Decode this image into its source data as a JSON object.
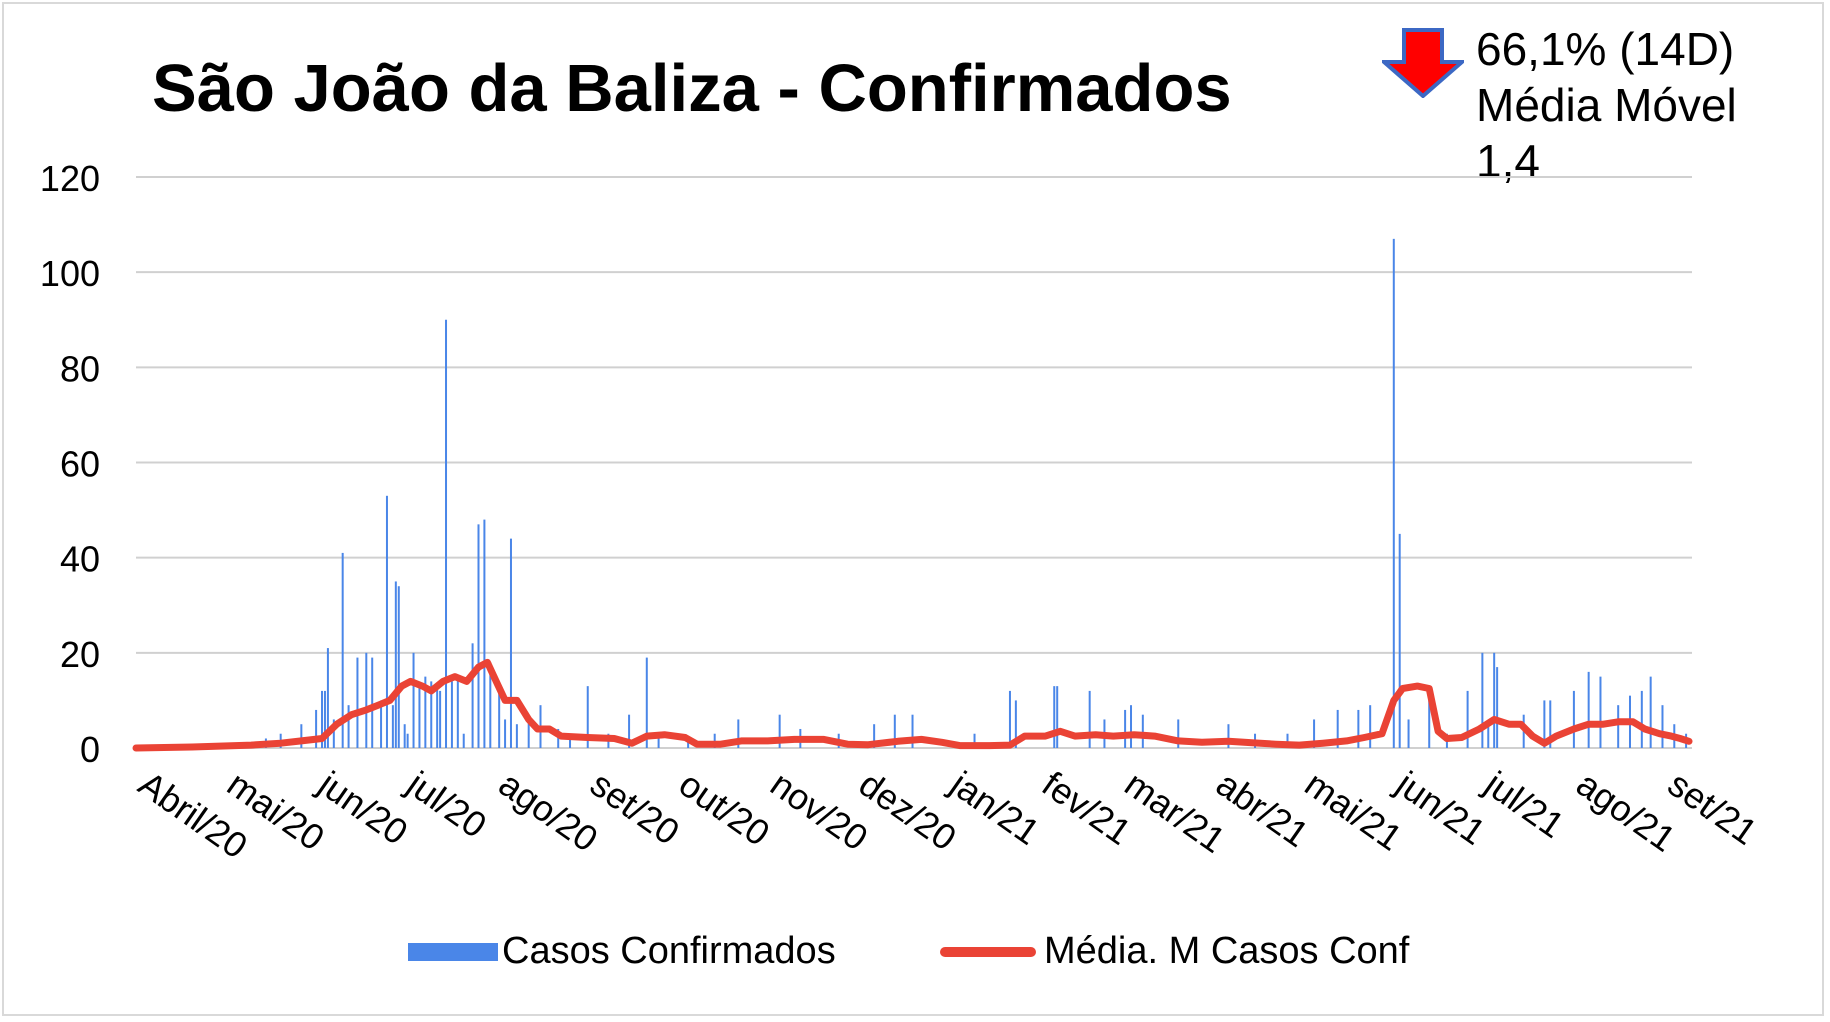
{
  "chart_data": {
    "type": "bar",
    "title": "São João da Baliza - Confirmados",
    "xlabel": "",
    "ylabel": "",
    "ylim": [
      0,
      120
    ],
    "yticks": [
      "0",
      "20",
      "40",
      "60",
      "80",
      "100",
      "120"
    ],
    "x_tick_labels": [
      "Abril/20",
      "mai/20",
      "jun/20",
      "jul/20",
      "ago/20",
      "set/20",
      "out/20",
      "nov/20",
      "dez/20",
      "jan/21",
      "fev/21",
      "mar/21",
      "abr/21",
      "mai/21",
      "jun/21",
      "jul/21",
      "ago/21",
      "set/21"
    ],
    "grid": true,
    "legend_position": "bottom",
    "series": [
      {
        "name": "Casos Confirmados",
        "type": "bar",
        "color": "#4a86e8",
        "points": [
          [
            "2020-05-08",
            1
          ],
          [
            "2020-05-15",
            2
          ],
          [
            "2020-05-20",
            3
          ],
          [
            "2020-05-27",
            5
          ],
          [
            "2020-06-01",
            8
          ],
          [
            "2020-06-03",
            12
          ],
          [
            "2020-06-04",
            12
          ],
          [
            "2020-06-05",
            21
          ],
          [
            "2020-06-07",
            6
          ],
          [
            "2020-06-10",
            41
          ],
          [
            "2020-06-12",
            9
          ],
          [
            "2020-06-15",
            19
          ],
          [
            "2020-06-18",
            20
          ],
          [
            "2020-06-20",
            19
          ],
          [
            "2020-06-23",
            10
          ],
          [
            "2020-06-25",
            53
          ],
          [
            "2020-06-27",
            9
          ],
          [
            "2020-06-28",
            35
          ],
          [
            "2020-06-29",
            34
          ],
          [
            "2020-07-01",
            5
          ],
          [
            "2020-07-02",
            3
          ],
          [
            "2020-07-04",
            20
          ],
          [
            "2020-07-06",
            13
          ],
          [
            "2020-07-08",
            15
          ],
          [
            "2020-07-10",
            14
          ],
          [
            "2020-07-12",
            13
          ],
          [
            "2020-07-13",
            12
          ],
          [
            "2020-07-15",
            90
          ],
          [
            "2020-07-17",
            14
          ],
          [
            "2020-07-19",
            15
          ],
          [
            "2020-07-21",
            3
          ],
          [
            "2020-07-24",
            22
          ],
          [
            "2020-07-26",
            47
          ],
          [
            "2020-07-28",
            48
          ],
          [
            "2020-07-30",
            18
          ],
          [
            "2020-08-02",
            12
          ],
          [
            "2020-08-04",
            6
          ],
          [
            "2020-08-06",
            44
          ],
          [
            "2020-08-08",
            5
          ],
          [
            "2020-08-12",
            7
          ],
          [
            "2020-08-16",
            9
          ],
          [
            "2020-08-22",
            4
          ],
          [
            "2020-08-26",
            3
          ],
          [
            "2020-09-01",
            13
          ],
          [
            "2020-09-08",
            3
          ],
          [
            "2020-09-15",
            7
          ],
          [
            "2020-09-21",
            19
          ],
          [
            "2020-09-25",
            3
          ],
          [
            "2020-10-05",
            2
          ],
          [
            "2020-10-14",
            3
          ],
          [
            "2020-10-22",
            6
          ],
          [
            "2020-11-05",
            7
          ],
          [
            "2020-11-12",
            4
          ],
          [
            "2020-11-25",
            3
          ],
          [
            "2020-12-07",
            5
          ],
          [
            "2020-12-14",
            7
          ],
          [
            "2020-12-20",
            7
          ],
          [
            "2021-01-10",
            3
          ],
          [
            "2021-01-22",
            12
          ],
          [
            "2021-01-24",
            10
          ],
          [
            "2021-02-06",
            13
          ],
          [
            "2021-02-07",
            13
          ],
          [
            "2021-02-18",
            12
          ],
          [
            "2021-02-23",
            6
          ],
          [
            "2021-03-02",
            8
          ],
          [
            "2021-03-04",
            9
          ],
          [
            "2021-03-08",
            7
          ],
          [
            "2021-03-20",
            6
          ],
          [
            "2021-04-06",
            5
          ],
          [
            "2021-04-15",
            3
          ],
          [
            "2021-04-26",
            3
          ],
          [
            "2021-05-05",
            6
          ],
          [
            "2021-05-13",
            8
          ],
          [
            "2021-05-20",
            8
          ],
          [
            "2021-05-24",
            9
          ],
          [
            "2021-06-01",
            107
          ],
          [
            "2021-06-03",
            45
          ],
          [
            "2021-06-06",
            6
          ],
          [
            "2021-06-13",
            10
          ],
          [
            "2021-06-19",
            3
          ],
          [
            "2021-06-26",
            12
          ],
          [
            "2021-07-01",
            20
          ],
          [
            "2021-07-03",
            5
          ],
          [
            "2021-07-05",
            20
          ],
          [
            "2021-07-06",
            17
          ],
          [
            "2021-07-15",
            7
          ],
          [
            "2021-07-22",
            10
          ],
          [
            "2021-07-24",
            10
          ],
          [
            "2021-08-01",
            12
          ],
          [
            "2021-08-06",
            16
          ],
          [
            "2021-08-10",
            15
          ],
          [
            "2021-08-16",
            9
          ],
          [
            "2021-08-20",
            11
          ],
          [
            "2021-08-24",
            12
          ],
          [
            "2021-08-27",
            15
          ],
          [
            "2021-08-31",
            9
          ],
          [
            "2021-09-04",
            5
          ],
          [
            "2021-09-08",
            3
          ]
        ]
      },
      {
        "name": "Média. M Casos Conf",
        "type": "line",
        "color": "#ea4335",
        "points": [
          [
            "2020-04-01",
            0
          ],
          [
            "2020-04-20",
            0.2
          ],
          [
            "2020-05-10",
            0.6
          ],
          [
            "2020-05-20",
            1
          ],
          [
            "2020-05-27",
            1.5
          ],
          [
            "2020-06-03",
            2
          ],
          [
            "2020-06-08",
            5
          ],
          [
            "2020-06-13",
            7
          ],
          [
            "2020-06-18",
            8
          ],
          [
            "2020-06-22",
            9
          ],
          [
            "2020-06-26",
            10
          ],
          [
            "2020-06-30",
            13
          ],
          [
            "2020-07-03",
            14
          ],
          [
            "2020-07-07",
            13
          ],
          [
            "2020-07-10",
            12
          ],
          [
            "2020-07-14",
            14
          ],
          [
            "2020-07-18",
            15
          ],
          [
            "2020-07-22",
            14
          ],
          [
            "2020-07-26",
            17
          ],
          [
            "2020-07-29",
            18
          ],
          [
            "2020-08-01",
            14
          ],
          [
            "2020-08-04",
            10
          ],
          [
            "2020-08-08",
            10
          ],
          [
            "2020-08-12",
            6
          ],
          [
            "2020-08-15",
            4
          ],
          [
            "2020-08-19",
            4
          ],
          [
            "2020-08-23",
            2.5
          ],
          [
            "2020-09-01",
            2.2
          ],
          [
            "2020-09-10",
            2
          ],
          [
            "2020-09-16",
            1
          ],
          [
            "2020-09-21",
            2.5
          ],
          [
            "2020-09-27",
            2.8
          ],
          [
            "2020-10-04",
            2.2
          ],
          [
            "2020-10-08",
            0.8
          ],
          [
            "2020-10-16",
            0.8
          ],
          [
            "2020-10-23",
            1.5
          ],
          [
            "2020-11-01",
            1.5
          ],
          [
            "2020-11-10",
            1.8
          ],
          [
            "2020-11-20",
            1.8
          ],
          [
            "2020-11-28",
            0.8
          ],
          [
            "2020-12-05",
            0.7
          ],
          [
            "2020-12-15",
            1.4
          ],
          [
            "2020-12-23",
            1.8
          ],
          [
            "2020-12-30",
            1.2
          ],
          [
            "2021-01-05",
            0.5
          ],
          [
            "2021-01-15",
            0.5
          ],
          [
            "2021-01-22",
            0.6
          ],
          [
            "2021-01-27",
            2.5
          ],
          [
            "2021-02-03",
            2.5
          ],
          [
            "2021-02-08",
            3.5
          ],
          [
            "2021-02-13",
            2.5
          ],
          [
            "2021-02-20",
            2.8
          ],
          [
            "2021-02-26",
            2.5
          ],
          [
            "2021-03-05",
            2.8
          ],
          [
            "2021-03-12",
            2.5
          ],
          [
            "2021-03-20",
            1.5
          ],
          [
            "2021-03-28",
            1.2
          ],
          [
            "2021-04-06",
            1.4
          ],
          [
            "2021-04-14",
            1.1
          ],
          [
            "2021-04-22",
            0.8
          ],
          [
            "2021-04-30",
            0.6
          ],
          [
            "2021-05-08",
            1
          ],
          [
            "2021-05-16",
            1.5
          ],
          [
            "2021-05-22",
            2.2
          ],
          [
            "2021-05-28",
            3
          ],
          [
            "2021-06-01",
            10
          ],
          [
            "2021-06-04",
            12.5
          ],
          [
            "2021-06-09",
            13
          ],
          [
            "2021-06-13",
            12.5
          ],
          [
            "2021-06-16",
            3.5
          ],
          [
            "2021-06-19",
            2
          ],
          [
            "2021-06-24",
            2.2
          ],
          [
            "2021-06-30",
            4
          ],
          [
            "2021-07-05",
            6
          ],
          [
            "2021-07-10",
            5
          ],
          [
            "2021-07-14",
            5
          ],
          [
            "2021-07-18",
            2.5
          ],
          [
            "2021-07-22",
            1
          ],
          [
            "2021-07-26",
            2.5
          ],
          [
            "2021-08-01",
            4
          ],
          [
            "2021-08-06",
            5
          ],
          [
            "2021-08-11",
            5
          ],
          [
            "2021-08-16",
            5.5
          ],
          [
            "2021-08-21",
            5.5
          ],
          [
            "2021-08-25",
            4
          ],
          [
            "2021-08-30",
            3
          ],
          [
            "2021-09-03",
            2.5
          ],
          [
            "2021-09-06",
            2
          ],
          [
            "2021-09-09",
            1.4
          ]
        ]
      }
    ]
  },
  "badge": {
    "arrow_color": "#ff0000",
    "arrow_border": "#3c68c4",
    "line1": "66,1% (14D)",
    "line2": "Média Móvel",
    "line3": "1,4"
  },
  "legend": {
    "bar_label": "Casos Confirmados",
    "line_label": "Média. M Casos Conf"
  }
}
